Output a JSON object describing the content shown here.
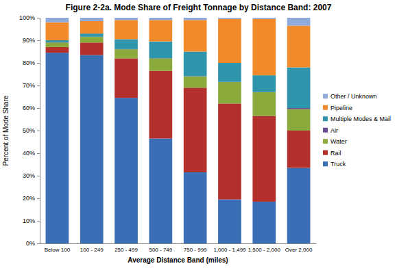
{
  "chart_data": {
    "type": "bar",
    "stacked": true,
    "grid": false,
    "legend": "right",
    "title": "Figure 2-2a.  Mode Share of Freight Tonnage by Distance Band:  2007",
    "x_label": "Average Distance Band (miles)",
    "y_label": "Percent of Mode Share",
    "categories": [
      "Below 100",
      "100 - 249",
      "250 - 499",
      "500 - 749",
      "750 - 999",
      "1,000 - 1,499",
      "1,500 - 2,000",
      "Over 2,000"
    ],
    "ylim": [
      0,
      100
    ],
    "yticks": [
      {
        "value": 0,
        "label": "0%"
      },
      {
        "value": 10,
        "label": "10%"
      },
      {
        "value": 20,
        "label": "20%"
      },
      {
        "value": 30,
        "label": "30%"
      },
      {
        "value": 40,
        "label": "40%"
      },
      {
        "value": 50,
        "label": "50%"
      },
      {
        "value": 60,
        "label": "60%"
      },
      {
        "value": 70,
        "label": "70%"
      },
      {
        "value": 80,
        "label": "80%"
      },
      {
        "value": 90,
        "label": "90%"
      },
      {
        "value": 100,
        "label": "100%"
      }
    ],
    "series": [
      {
        "name": "Truck",
        "color": "#3a6fb5",
        "values": [
          84.5,
          83.5,
          64.5,
          46.5,
          31.5,
          19.5,
          18.5,
          33.5
        ]
      },
      {
        "name": "Rail",
        "color": "#b3302c",
        "values": [
          2.5,
          5.5,
          17.5,
          30,
          37.5,
          42.5,
          38,
          16.5
        ]
      },
      {
        "name": "Water",
        "color": "#8aab3c",
        "values": [
          2,
          2.5,
          4,
          5.5,
          5,
          9.5,
          10.5,
          9.5
        ]
      },
      {
        "name": "Air",
        "color": "#6b4c93",
        "values": [
          0.1,
          0.1,
          0.1,
          0.1,
          0.1,
          0.1,
          0.1,
          0.5
        ]
      },
      {
        "name": "Multiple Modes & Mail",
        "color": "#2f95ad",
        "values": [
          0.9,
          1.4,
          4.4,
          7.4,
          10.9,
          8.4,
          7.4,
          18
        ]
      },
      {
        "name": "Pipeline",
        "color": "#f08a2a",
        "values": [
          8,
          5.5,
          8.5,
          9.5,
          14,
          19.5,
          25,
          18.5
        ]
      },
      {
        "name": "Other / Unknown",
        "color": "#8eaadb",
        "values": [
          2,
          1.5,
          1,
          1,
          1,
          0.5,
          0.5,
          3.5
        ]
      }
    ]
  }
}
